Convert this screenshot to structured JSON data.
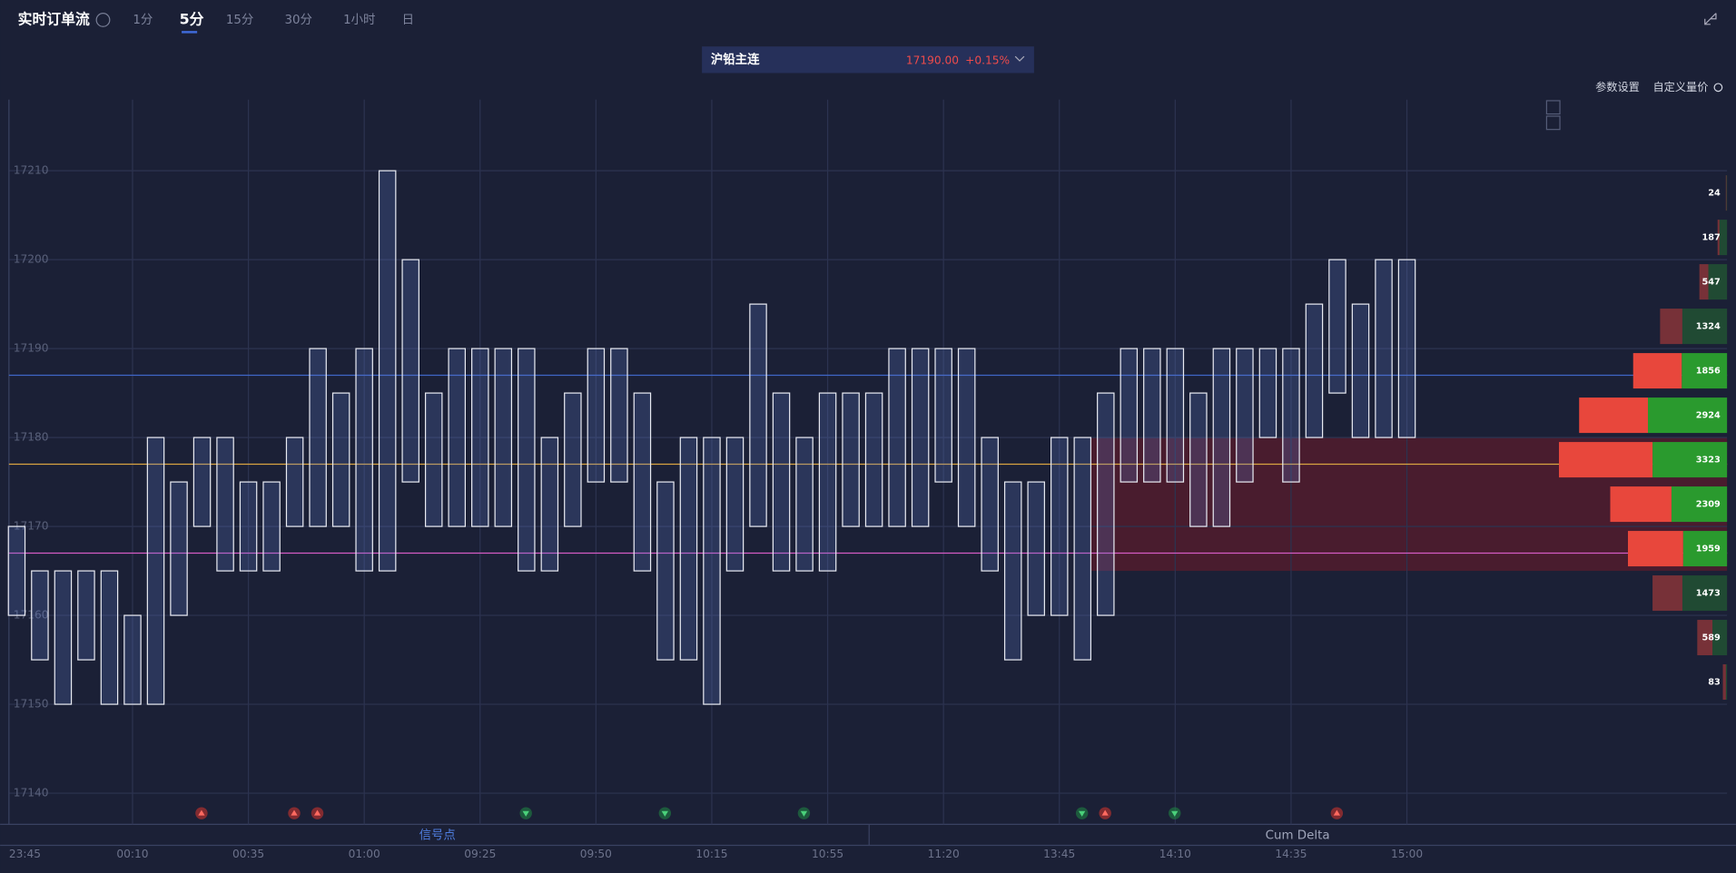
{
  "header": {
    "title": "实时订单流",
    "tabs": [
      "1分",
      "5分",
      "15分",
      "30分",
      "1小时",
      "日"
    ],
    "active_tab": 1,
    "instrument": {
      "name": "沪铅主连",
      "price": "17190.00",
      "change": "+0.15%"
    },
    "toolbar": [
      "参数设置",
      "自定义量价"
    ]
  },
  "chart_data": {
    "type": "footprint",
    "categories": [
      "23:45",
      null,
      null,
      null,
      null,
      "00:10",
      null,
      null,
      null,
      null,
      "00:35",
      null,
      null,
      null,
      null,
      "01:00",
      null,
      null,
      null,
      null,
      "09:25",
      null,
      null,
      null,
      null,
      "09:50",
      null,
      null,
      null,
      null,
      "10:15",
      null,
      null,
      null,
      null,
      "10:55",
      null,
      null,
      null,
      null,
      "11:20",
      null,
      null,
      null,
      null,
      "13:45",
      null,
      null,
      null,
      null,
      "14:10",
      null,
      null,
      null,
      null,
      "14:35",
      null,
      null,
      null,
      null,
      "15:00"
    ],
    "high": [
      17170,
      17165,
      17165,
      17165,
      17165,
      17160,
      17180,
      17175,
      17180,
      17180,
      17175,
      17175,
      17180,
      17190,
      17185,
      17190,
      17210,
      17200,
      17185,
      17190,
      17190,
      17190,
      17190,
      17180,
      17185,
      17190,
      17190,
      17185,
      17175,
      17180,
      17180,
      17180,
      17195,
      17185,
      17180,
      17185,
      17185,
      17185,
      17190,
      17190,
      17190,
      17190,
      17180,
      17175,
      17175,
      17180,
      17180,
      17185,
      17190,
      17190,
      17190,
      17185,
      17190,
      17190,
      17190,
      17190,
      17195,
      17200,
      17195,
      17200,
      17200
    ],
    "low": [
      17160,
      17155,
      17150,
      17155,
      17150,
      17150,
      17150,
      17160,
      17170,
      17165,
      17165,
      17165,
      17170,
      17170,
      17170,
      17165,
      17165,
      17175,
      17170,
      17170,
      17170,
      17170,
      17165,
      17165,
      17170,
      17175,
      17175,
      17165,
      17155,
      17155,
      17150,
      17165,
      17170,
      17165,
      17165,
      17165,
      17170,
      17170,
      17170,
      17170,
      17175,
      17170,
      17165,
      17155,
      17160,
      17160,
      17155,
      17160,
      17175,
      17175,
      17175,
      17170,
      17170,
      17175,
      17180,
      17175,
      17180,
      17185,
      17180,
      17180,
      17180
    ],
    "ylim": [
      17136.5,
      17218
    ],
    "yticks": [
      17140,
      17150,
      17160,
      17170,
      17180,
      17190,
      17200,
      17210
    ],
    "grid": true,
    "signals": [
      null,
      null,
      null,
      null,
      null,
      null,
      null,
      null,
      "up",
      null,
      null,
      null,
      "up",
      "up",
      null,
      null,
      null,
      null,
      null,
      null,
      null,
      null,
      "down",
      null,
      null,
      null,
      null,
      null,
      "down",
      null,
      null,
      null,
      null,
      null,
      "down",
      null,
      null,
      null,
      null,
      null,
      null,
      null,
      null,
      null,
      null,
      null,
      "down",
      "up",
      null,
      null,
      "down",
      null,
      null,
      null,
      null,
      null,
      null,
      "up",
      null,
      null,
      null
    ],
    "signal_colors": {
      "up": "#d9342b",
      "down": "#1f8a43"
    },
    "price_lines": [
      {
        "value": 17187,
        "color": "#3f66c8"
      },
      {
        "value": 17177,
        "color": "#d9a441"
      },
      {
        "value": 17167,
        "color": "#d45bc4"
      }
    ],
    "zone": {
      "ylim": [
        17165,
        17180
      ],
      "color": "#5a1b2c"
    },
    "profile": {
      "levels": [
        17207.5,
        17202.5,
        17197.5,
        17192.5,
        17187.5,
        17182.5,
        17177.5,
        17172.5,
        17167.5,
        17162.5,
        17157.5,
        17152.5
      ],
      "totals": [
        24,
        187,
        547,
        1324,
        1856,
        2924,
        3323,
        2309,
        1959,
        1473,
        589,
        83
      ],
      "sell": [
        12,
        37,
        177,
        440,
        960,
        1360,
        1850,
        1210,
        1090,
        590,
        300,
        60
      ],
      "buy": [
        12,
        150,
        370,
        884,
        896,
        1564,
        1473,
        1099,
        869,
        883,
        289,
        23
      ],
      "colors": {
        "sell": "#e8473c",
        "buy": "#2a9a2e"
      }
    }
  },
  "panels": [
    "信号点",
    "Cum Delta"
  ]
}
